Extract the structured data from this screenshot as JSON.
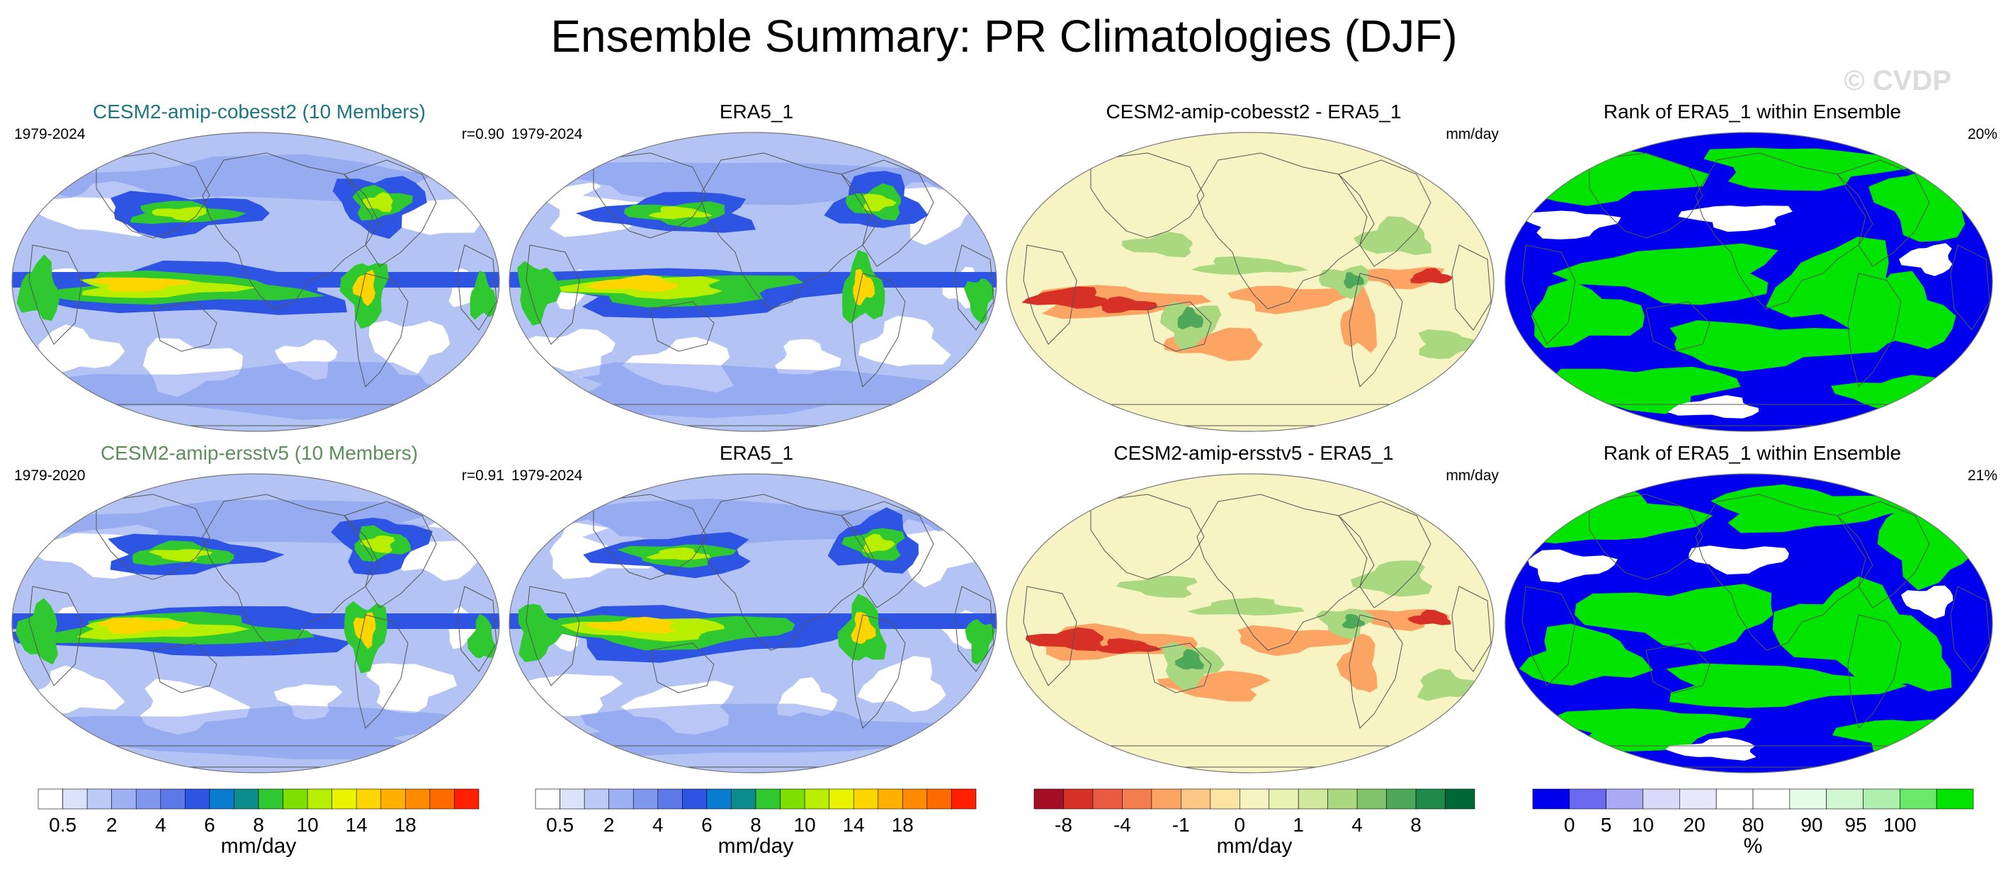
{
  "title": "Ensemble Summary: PR Climatologies (DJF)",
  "watermark": "© CVDP",
  "panels": [
    {
      "title": "CESM2-amip-cobesst2 (10 Members)",
      "title_color": "#1c7680",
      "left": "1979-2024",
      "right": "r=0.90",
      "kind": "clim"
    },
    {
      "title": "ERA5_1",
      "title_color": "#000000",
      "left": "1979-2024",
      "right": "",
      "kind": "clim"
    },
    {
      "title": "CESM2-amip-cobesst2 - ERA5_1",
      "title_color": "#000000",
      "left": "",
      "right": "mm/day",
      "kind": "diff"
    },
    {
      "title": "Rank of ERA5_1 within Ensemble",
      "title_color": "#000000",
      "left": "",
      "right": "20%",
      "kind": "rank"
    },
    {
      "title": "CESM2-amip-ersstv5 (10 Members)",
      "title_color": "#5a8f5a",
      "left": "1979-2020",
      "right": "r=0.91",
      "kind": "clim"
    },
    {
      "title": "ERA5_1",
      "title_color": "#000000",
      "left": "1979-2024",
      "right": "",
      "kind": "clim"
    },
    {
      "title": "CESM2-amip-ersstv5 - ERA5_1",
      "title_color": "#000000",
      "left": "",
      "right": "mm/day",
      "kind": "diff"
    },
    {
      "title": "Rank of ERA5_1 within Ensemble",
      "title_color": "#000000",
      "left": "",
      "right": "21%",
      "kind": "rank"
    }
  ],
  "colorbars": [
    {
      "label": "mm/day",
      "colors": [
        "#ffffff",
        "#dbe3fb",
        "#bccaf7",
        "#9db1f2",
        "#7f98ee",
        "#5d78e9",
        "#2e54e4",
        "#0a7cd0",
        "#0c8c8c",
        "#30c830",
        "#7ee000",
        "#b8ee00",
        "#eaf400",
        "#ffd500",
        "#ffb000",
        "#ff8c00",
        "#ff6a00",
        "#ff2000"
      ],
      "ticks": [
        "0.5",
        "2",
        "4",
        "6",
        "8",
        "10",
        "14",
        "18"
      ],
      "tick_index": [
        1,
        3,
        5,
        7,
        9,
        11,
        13,
        15
      ]
    },
    {
      "label": "mm/day",
      "colors": [
        "#ffffff",
        "#dbe3fb",
        "#bccaf7",
        "#9db1f2",
        "#7f98ee",
        "#5d78e9",
        "#2e54e4",
        "#0a7cd0",
        "#0c8c8c",
        "#30c830",
        "#7ee000",
        "#b8ee00",
        "#eaf400",
        "#ffd500",
        "#ffb000",
        "#ff8c00",
        "#ff6a00",
        "#ff2000"
      ],
      "ticks": [
        "0.5",
        "2",
        "4",
        "6",
        "8",
        "10",
        "14",
        "18"
      ],
      "tick_index": [
        1,
        3,
        5,
        7,
        9,
        11,
        13,
        15
      ]
    },
    {
      "label": "mm/day",
      "colors": [
        "#a50f26",
        "#d73027",
        "#e85a42",
        "#f47d4f",
        "#fba463",
        "#fdc785",
        "#fde4a3",
        "#f7f3c2",
        "#e8f2b3",
        "#cfe89b",
        "#aad880",
        "#7fc36a",
        "#4ea85a",
        "#1f8a4a",
        "#006837"
      ],
      "ticks": [
        "-8",
        "-4",
        "-1",
        "0",
        "1",
        "4",
        "8"
      ],
      "tick_index": [
        1,
        3,
        5,
        7,
        9,
        11,
        13
      ]
    },
    {
      "label": "%",
      "colors": [
        "#0000ee",
        "#6a6af0",
        "#aaaaf4",
        "#d8d8f8",
        "#e8e8fa",
        "#ffffff",
        "#ffffff",
        "#e6fbe6",
        "#d0f7d0",
        "#aef0ae",
        "#6ae86a",
        "#00e400"
      ],
      "ticks": [
        "0",
        "5",
        "10",
        "20",
        "80",
        "90",
        "95",
        "100"
      ],
      "tick_index": [
        1,
        2,
        3,
        4.4,
        6.0,
        7.6,
        8.8,
        10
      ]
    }
  ]
}
